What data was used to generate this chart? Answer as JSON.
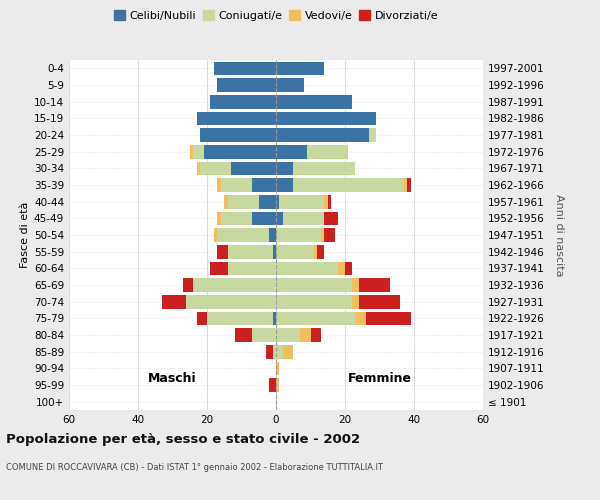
{
  "age_groups": [
    "100+",
    "95-99",
    "90-94",
    "85-89",
    "80-84",
    "75-79",
    "70-74",
    "65-69",
    "60-64",
    "55-59",
    "50-54",
    "45-49",
    "40-44",
    "35-39",
    "30-34",
    "25-29",
    "20-24",
    "15-19",
    "10-14",
    "5-9",
    "0-4"
  ],
  "birth_years": [
    "≤ 1901",
    "1902-1906",
    "1907-1911",
    "1912-1916",
    "1917-1921",
    "1922-1926",
    "1927-1931",
    "1932-1936",
    "1937-1941",
    "1942-1946",
    "1947-1951",
    "1952-1956",
    "1957-1961",
    "1962-1966",
    "1967-1971",
    "1972-1976",
    "1977-1981",
    "1982-1986",
    "1987-1991",
    "1992-1996",
    "1997-2001"
  ],
  "maschi": {
    "celibi": [
      0,
      0,
      0,
      0,
      0,
      1,
      0,
      0,
      0,
      1,
      2,
      7,
      5,
      7,
      13,
      21,
      22,
      23,
      19,
      17,
      18
    ],
    "coniugati": [
      0,
      0,
      0,
      1,
      7,
      19,
      26,
      24,
      14,
      13,
      15,
      9,
      9,
      9,
      9,
      3,
      0,
      0,
      0,
      0,
      0
    ],
    "vedovi": [
      0,
      0,
      0,
      0,
      0,
      0,
      0,
      0,
      0,
      0,
      1,
      1,
      1,
      1,
      1,
      1,
      0,
      0,
      0,
      0,
      0
    ],
    "divorziati": [
      0,
      2,
      0,
      2,
      5,
      3,
      7,
      3,
      5,
      3,
      0,
      0,
      0,
      0,
      0,
      0,
      0,
      0,
      0,
      0,
      0
    ]
  },
  "femmine": {
    "nubili": [
      0,
      0,
      0,
      0,
      0,
      0,
      0,
      0,
      0,
      0,
      0,
      2,
      1,
      5,
      5,
      9,
      27,
      29,
      22,
      8,
      14
    ],
    "coniugate": [
      0,
      0,
      0,
      2,
      7,
      23,
      22,
      22,
      18,
      11,
      13,
      12,
      13,
      32,
      18,
      12,
      2,
      0,
      0,
      0,
      0
    ],
    "vedove": [
      0,
      1,
      1,
      3,
      3,
      3,
      2,
      2,
      2,
      1,
      1,
      0,
      1,
      1,
      0,
      0,
      0,
      0,
      0,
      0,
      0
    ],
    "divorziate": [
      0,
      0,
      0,
      0,
      3,
      13,
      12,
      9,
      2,
      2,
      3,
      4,
      1,
      1,
      0,
      0,
      0,
      0,
      0,
      0,
      0
    ]
  },
  "color_celibi": "#3d72a4",
  "color_coniugati": "#c8d9a0",
  "color_vedovi": "#f0c060",
  "color_divorziati": "#cc2020",
  "title": "Popolazione per età, sesso e stato civile - 2002",
  "subtitle": "COMUNE DI ROCCAVIVARA (CB) - Dati ISTAT 1° gennaio 2002 - Elaborazione TUTTITALIA.IT",
  "xlabel_left": "Maschi",
  "xlabel_right": "Femmine",
  "ylabel_left": "Fasce di età",
  "ylabel_right": "Anni di nascita",
  "xlim": 60,
  "bg_color": "#ebebeb",
  "plot_bg": "#ffffff"
}
